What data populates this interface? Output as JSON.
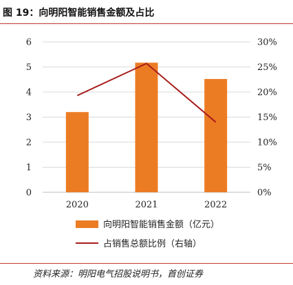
{
  "figure_title": "图 19：向明阳智能销售金额及占比",
  "source": "资料来源：明阳电气招股说明书，首创证券",
  "colors": {
    "bar": "#ec7c24",
    "line": "#a81c1c",
    "grid": "#d9d9d9",
    "axis": "#bfbfbf",
    "accent_rule": "#c0392b"
  },
  "chart_data": {
    "type": "bar",
    "categories": [
      "2020",
      "2021",
      "2022"
    ],
    "series": [
      {
        "name": "向明阳智能销售金额（亿元）",
        "type": "bar",
        "axis": "left",
        "values": [
          3.2,
          5.17,
          4.52
        ]
      },
      {
        "name": "占销售总额比例（右轴）",
        "type": "line",
        "axis": "right",
        "values": [
          19.3,
          25.7,
          14.0
        ]
      }
    ],
    "left_axis": {
      "ylim": [
        0,
        6
      ],
      "ticks": [
        "0",
        "1",
        "2",
        "3",
        "4",
        "5",
        "6"
      ]
    },
    "right_axis": {
      "ylim": [
        0,
        30
      ],
      "ticks": [
        "0%",
        "5%",
        "10%",
        "15%",
        "20%",
        "25%",
        "30%"
      ]
    },
    "grid": true,
    "legend_position": "bottom"
  }
}
